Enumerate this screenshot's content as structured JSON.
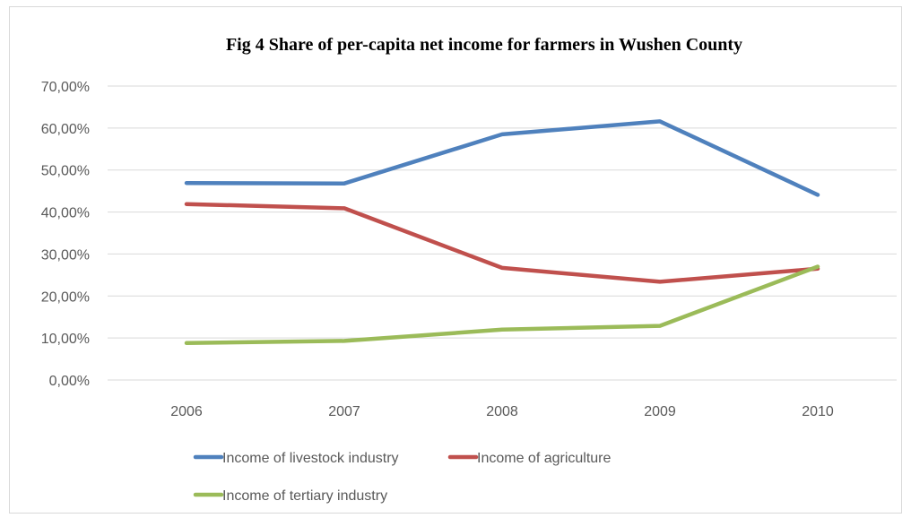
{
  "chart_data": {
    "type": "line",
    "title": "Fig 4  Share of per-capita net income for farmers in Wushen County",
    "xlabel": "",
    "ylabel": "",
    "categories": [
      "2006",
      "2007",
      "2008",
      "2009",
      "2010"
    ],
    "y_ticks": [
      "0,00%",
      "10,00%",
      "20,00%",
      "30,00%",
      "40,00%",
      "50,00%",
      "60,00%",
      "70,00%"
    ],
    "ylim": [
      0,
      70
    ],
    "grid": true,
    "legend_position": "bottom",
    "series": [
      {
        "name": "Income of livestock industry",
        "color": "#4f81bd",
        "values": [
          46.9,
          46.8,
          58.5,
          61.6,
          44.1
        ]
      },
      {
        "name": "Income of agriculture",
        "color": "#c0504d",
        "values": [
          41.9,
          40.9,
          26.7,
          23.4,
          26.5
        ]
      },
      {
        "name": "Income of tertiary industry",
        "color": "#9bbb59",
        "values": [
          8.8,
          9.3,
          12.0,
          12.9,
          27.0
        ]
      }
    ]
  }
}
